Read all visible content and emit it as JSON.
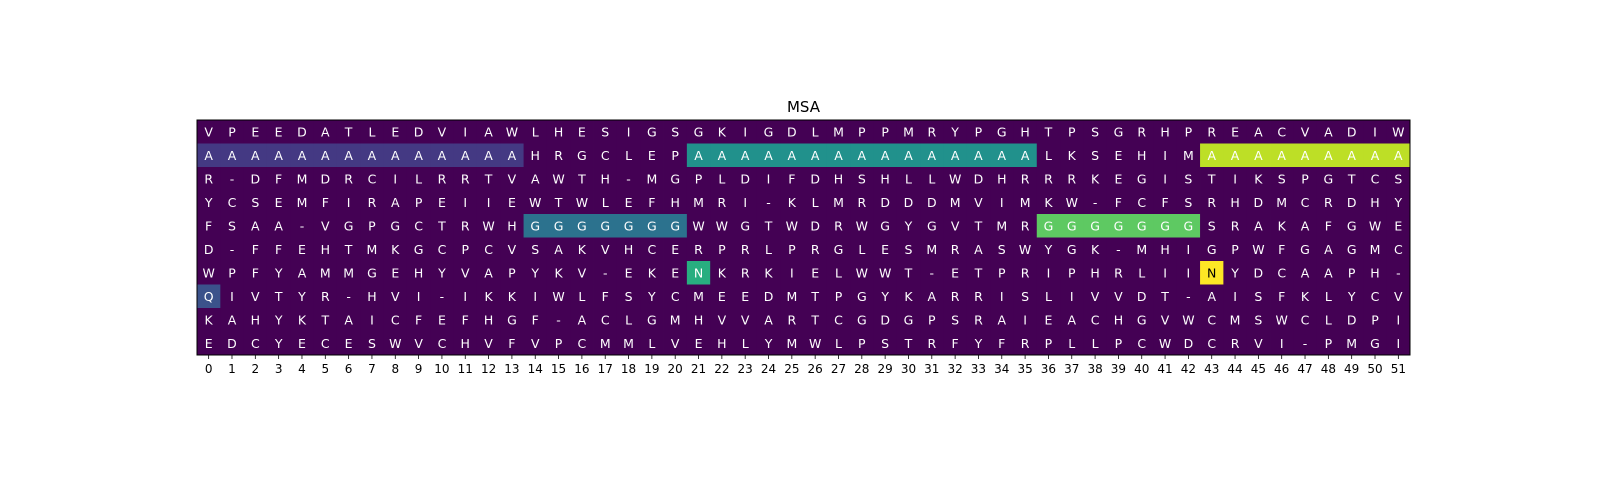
{
  "chart_data": {
    "type": "heatmap",
    "title": "MSA",
    "xlabel": "",
    "ylabel": "",
    "x_ticks": [
      "0",
      "1",
      "2",
      "3",
      "4",
      "5",
      "6",
      "7",
      "8",
      "9",
      "10",
      "11",
      "12",
      "13",
      "14",
      "15",
      "16",
      "17",
      "18",
      "19",
      "20",
      "21",
      "22",
      "23",
      "24",
      "25",
      "26",
      "27",
      "28",
      "29",
      "30",
      "31",
      "32",
      "33",
      "34",
      "35",
      "36",
      "37",
      "38",
      "39",
      "40",
      "41",
      "42",
      "43",
      "44",
      "45",
      "46",
      "47",
      "48",
      "49",
      "50",
      "51"
    ],
    "y_ticks_shown": false,
    "colormap": "viridis",
    "rows": [
      "VPEEDATLEDVIAWLHESIGSGKIGDLMPPMRYPGHTPSGRHPREACVADIW",
      "AAAAAAAAAAAAAAHRGCLEPAAAAAAAAAAAAAAALKSEHIMAAAAAAAAA",
      "R-DFMDRCILRRTVAWTH-MGPLDIFDHSHLLWDHRRRKEGISTIKSPGTCS",
      "YCSEMFIRAPEIIEWTWLEFHMRI-KLMRDDDMVIMKW-FCFSRHDMCRDHY",
      "FSAA-VGPGCTRWHGGGGGGGWWGTWDRWGYGVTMRGGGGGGGSRAKAFGWE",
      "D-FFEHTMKGCPCVSAKVHCERPRLPRGLESMRASWYGK-MHIGPWFGAGMC",
      "WPFYAMMGEHYVAPYKV-EKENKRKIELWWT-ETPRIPHRLIINYDCAAPH-",
      "QIVTYR-HVI-IKKIWLFSYCMEEDMTPGYKARRISLIVVDT-AISFKLYCV",
      "KAHYKTAICFEFHGF-ACLGMHVVARTCGDGPSRAIEACHGVWCMSWCLDPI",
      "EDCYECESWVCHVFVPCMMLVEHLYMWLPSTRFYFRPLLPCWDCRVI-PMGI"
    ],
    "highlights": [
      {
        "row": 1,
        "start": 0,
        "end": 13,
        "letter": "A",
        "color": "#443983"
      },
      {
        "row": 1,
        "start": 21,
        "end": 35,
        "letter": "A",
        "color": "#21918c"
      },
      {
        "row": 1,
        "start": 43,
        "end": 51,
        "letter": "A",
        "color": "#bddf26"
      },
      {
        "row": 4,
        "start": 14,
        "end": 20,
        "letter": "G",
        "color": "#2c728e"
      },
      {
        "row": 4,
        "start": 36,
        "end": 42,
        "letter": "G",
        "color": "#5ec962"
      },
      {
        "row": 6,
        "start": 21,
        "end": 21,
        "letter": "N",
        "color": "#28ae80"
      },
      {
        "row": 6,
        "start": 43,
        "end": 43,
        "letter": "N",
        "color": "#fde725"
      },
      {
        "row": 7,
        "start": 0,
        "end": 0,
        "letter": "Q",
        "color": "#3b528b"
      }
    ],
    "colors": {
      "background": "#440154",
      "text_on_dark": "#ffffff",
      "text_on_light": "#000000"
    }
  }
}
